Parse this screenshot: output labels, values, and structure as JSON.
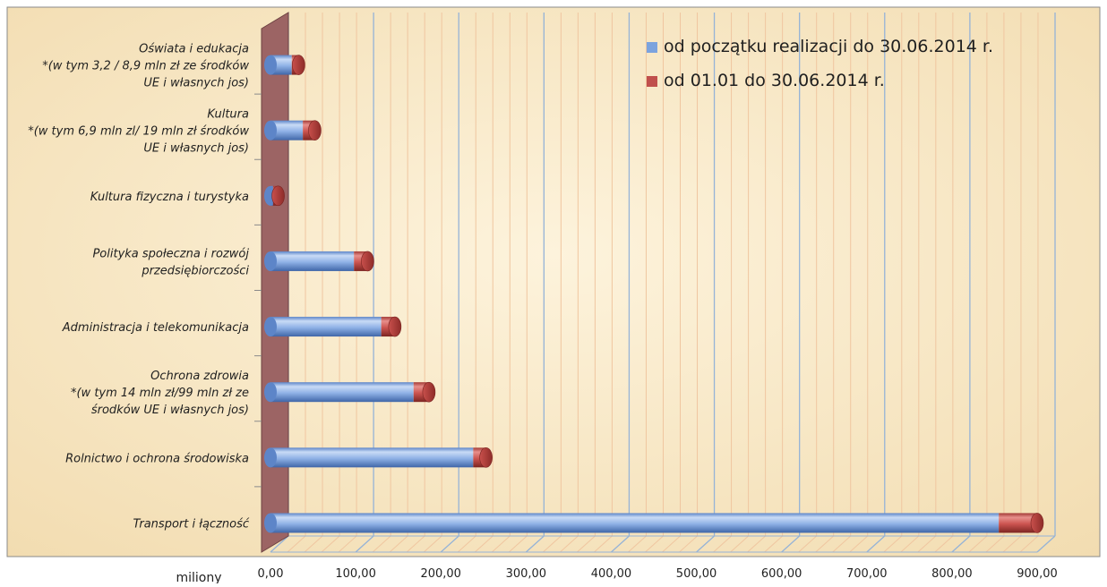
{
  "chart_data": {
    "type": "bar",
    "orientation": "horizontal",
    "stacked": true,
    "three_d": true,
    "categories": [
      [
        "Oświata i edukacja",
        "*(w tym 3,2 / 8,9 mln zł ze środków",
        "UE  i własnych jos)"
      ],
      [
        "Kultura",
        "*(w tym 6,9 mln zl/ 19 mln zł środków",
        "UE i własnych jos)"
      ],
      [
        "Kultura fizyczna i turystyka"
      ],
      [
        "Polityka społeczna i rozwój",
        "przedsiębiorczości"
      ],
      [
        "Administracja i telekomunikacja"
      ],
      [
        "Ochrona zdrowia",
        "*(w tym 14 mln zł/99 mln zł ze",
        "środków UE i własnych jos)"
      ],
      [
        "Rolnictwo i ochrona środowiska"
      ],
      [
        "Transport i łączność"
      ]
    ],
    "series": [
      {
        "name": "od początku realizacji do 30.06.2014 r.",
        "color": "#7ba3de",
        "values": [
          25,
          38,
          3,
          98,
          130,
          168,
          238,
          855
        ]
      },
      {
        "name": "od 01.01 do 30.06.2014 r.",
        "color": "#c0504d",
        "values": [
          8,
          14,
          6,
          16,
          16,
          18,
          15,
          45
        ]
      }
    ],
    "x_ticks": [
      "0,00",
      "100,00",
      "200,00",
      "300,00",
      "400,00",
      "500,00",
      "600,00",
      "700,00",
      "800,00",
      "900,00"
    ],
    "xlim": [
      0,
      900
    ],
    "xlabel": "miliony",
    "title": "",
    "grid": true,
    "legend_position": "top-right",
    "colors": {
      "background": "#f8e6c2",
      "floor": "#9c6464",
      "major_grid": "#95b3d7",
      "minor_grid": "#f0c6a0",
      "text": "#1f1f1f"
    }
  }
}
